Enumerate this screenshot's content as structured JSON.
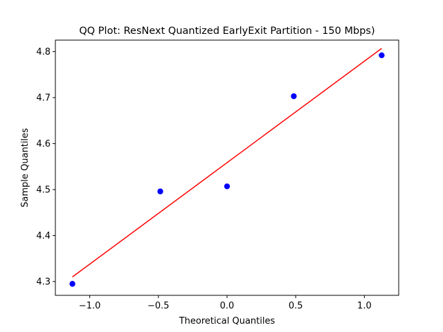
{
  "chart_data": {
    "type": "scatter",
    "title": "QQ Plot: ResNext Quantized EarlyExit Partition - 150 Mbps)",
    "xlabel": "Theoretical Quantiles",
    "ylabel": "Sample Quantiles",
    "xlim": [
      -1.25,
      1.25
    ],
    "ylim": [
      4.27,
      4.825
    ],
    "xticks": [
      -1.0,
      -0.5,
      0.0,
      0.5,
      1.0
    ],
    "xtick_labels": [
      "−1.0",
      "−0.5",
      "0.0",
      "0.5",
      "1.0"
    ],
    "yticks": [
      4.3,
      4.4,
      4.5,
      4.6,
      4.7,
      4.8
    ],
    "ytick_labels": [
      "4.3",
      "4.4",
      "4.5",
      "4.6",
      "4.7",
      "4.8"
    ],
    "grid": false,
    "series": [
      {
        "type": "scatter",
        "color": "#0000ff",
        "points": [
          {
            "x": -1.126,
            "y": 4.295
          },
          {
            "x": -0.486,
            "y": 4.496
          },
          {
            "x": 0.0,
            "y": 4.507
          },
          {
            "x": 0.486,
            "y": 4.703
          },
          {
            "x": 1.126,
            "y": 4.792
          }
        ]
      },
      {
        "type": "line",
        "color": "#ff0000",
        "points": [
          {
            "x": -1.126,
            "y": 4.31
          },
          {
            "x": 1.126,
            "y": 4.807
          }
        ]
      }
    ]
  }
}
